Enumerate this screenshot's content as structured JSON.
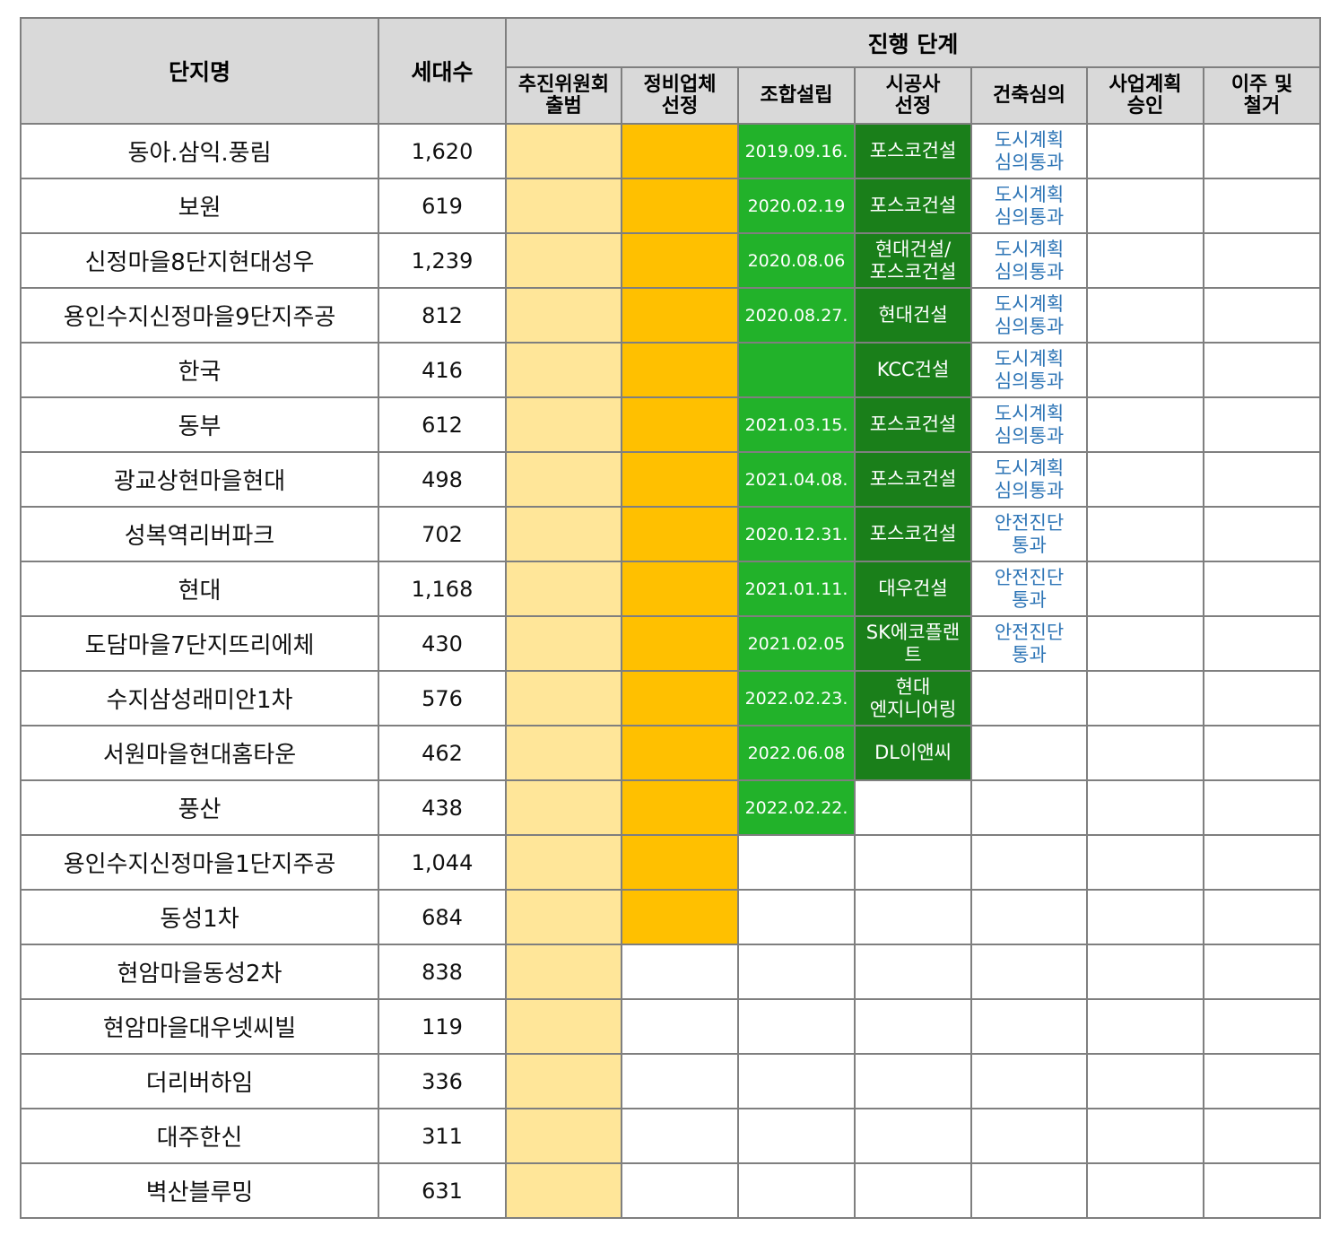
{
  "header": {
    "name": "단지명",
    "count": "세대수",
    "group": "진행 단계",
    "stages": [
      "추진위원회\n출범",
      "정비업체\n선정",
      "조합설립",
      "시공사\n선정",
      "건축심의",
      "사업계획\n승인",
      "이주 및\n철거"
    ]
  },
  "colors": {
    "header_bg": "#d9d9d9",
    "committee": "#ffe699",
    "agency": "#ffc000",
    "union": "#22b22a",
    "contractor": "#1a7f1a",
    "review_text": "#2e75b6"
  },
  "rows": [
    {
      "name": "동아.삼익.풍림",
      "count": "1,620",
      "stage": 5,
      "union": "2019.09.16.",
      "contractor": "포스코건설",
      "review": "도시계획\n심의통과"
    },
    {
      "name": "보원",
      "count": "619",
      "stage": 5,
      "union": "2020.02.19",
      "contractor": "포스코건설",
      "review": "도시계획\n심의통과"
    },
    {
      "name": "신정마을8단지현대성우",
      "count": "1,239",
      "stage": 5,
      "union": "2020.08.06",
      "contractor": "현대건설/\n포스코건설",
      "review": "도시계획\n심의통과"
    },
    {
      "name": "용인수지신정마을9단지주공",
      "count": "812",
      "stage": 5,
      "union": "2020.08.27.",
      "contractor": "현대건설",
      "review": "도시계획\n심의통과"
    },
    {
      "name": "한국",
      "count": "416",
      "stage": 5,
      "union": "",
      "contractor": "KCC건설",
      "review": "도시계획\n심의통과"
    },
    {
      "name": "동부",
      "count": "612",
      "stage": 5,
      "union": "2021.03.15.",
      "contractor": "포스코건설",
      "review": "도시계획\n심의통과"
    },
    {
      "name": "광교상현마을현대",
      "count": "498",
      "stage": 5,
      "union": "2021.04.08.",
      "contractor": "포스코건설",
      "review": "도시계획\n심의통과"
    },
    {
      "name": "성복역리버파크",
      "count": "702",
      "stage": 5,
      "union": "2020.12.31.",
      "contractor": "포스코건설",
      "review": "안전진단\n통과"
    },
    {
      "name": "현대",
      "count": "1,168",
      "stage": 5,
      "union": "2021.01.11.",
      "contractor": "대우건설",
      "review": "안전진단\n통과"
    },
    {
      "name": "도담마을7단지뜨리에체",
      "count": "430",
      "stage": 5,
      "union": "2021.02.05",
      "contractor": "SK에코플랜\n트",
      "review": "안전진단\n통과"
    },
    {
      "name": "수지삼성래미안1차",
      "count": "576",
      "stage": 4,
      "union": "2022.02.23.",
      "contractor": "현대\n엔지니어링",
      "review": ""
    },
    {
      "name": "서원마을현대홈타운",
      "count": "462",
      "stage": 4,
      "union": "2022.06.08",
      "contractor": "DL이앤씨",
      "review": ""
    },
    {
      "name": "풍산",
      "count": "438",
      "stage": 3,
      "union": "2022.02.22.",
      "contractor": "",
      "review": ""
    },
    {
      "name": "용인수지신정마을1단지주공",
      "count": "1,044",
      "stage": 2,
      "union": "",
      "contractor": "",
      "review": ""
    },
    {
      "name": "동성1차",
      "count": "684",
      "stage": 2,
      "union": "",
      "contractor": "",
      "review": ""
    },
    {
      "name": "현암마을동성2차",
      "count": "838",
      "stage": 1,
      "union": "",
      "contractor": "",
      "review": ""
    },
    {
      "name": "현암마을대우넷씨빌",
      "count": "119",
      "stage": 1,
      "union": "",
      "contractor": "",
      "review": ""
    },
    {
      "name": "더리버하임",
      "count": "336",
      "stage": 1,
      "union": "",
      "contractor": "",
      "review": ""
    },
    {
      "name": "대주한신",
      "count": "311",
      "stage": 1,
      "union": "",
      "contractor": "",
      "review": ""
    },
    {
      "name": "벽산블루밍",
      "count": "631",
      "stage": 1,
      "union": "",
      "contractor": "",
      "review": ""
    }
  ]
}
